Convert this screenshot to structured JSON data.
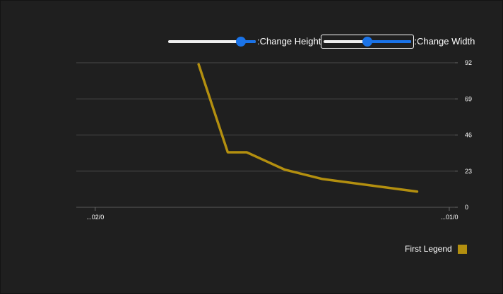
{
  "controls": {
    "height_label": ":Change Height",
    "width_label": ":Change Width",
    "height_slider_value": 0.83,
    "width_slider_value": 0.5
  },
  "legend": {
    "label": "First Legend"
  },
  "colors": {
    "background": "#1f1f1f",
    "series": "#b38f0f",
    "grid": "#4a4a4a",
    "slider_accent": "#1a73e8",
    "text": "#ffffff"
  },
  "chart_data": {
    "type": "line",
    "title": "",
    "xlabel": "",
    "ylabel": "",
    "x_tick_labels": [
      "...02/0",
      "...01/0"
    ],
    "y_ticks": [
      0,
      23,
      46,
      69,
      92
    ],
    "ylim": [
      0,
      92
    ],
    "y_axis_side": "right",
    "grid": true,
    "legend_position": "bottom-right",
    "series": [
      {
        "name": "First Legend",
        "x": [
          0.323,
          0.4,
          0.45,
          0.55,
          0.65,
          0.9
        ],
        "values": [
          91,
          35,
          35,
          24,
          18,
          10
        ]
      }
    ]
  }
}
